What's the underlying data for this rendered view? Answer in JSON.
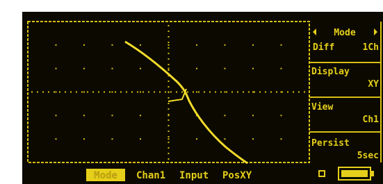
{
  "menu": [
    {
      "title": "Mode",
      "left": "Diff",
      "right": "1Ch"
    },
    {
      "title": "Display",
      "right": "XY"
    },
    {
      "title": "View",
      "right": "Ch1"
    },
    {
      "title": "Persist",
      "right": "5sec"
    }
  ],
  "softkeys": [
    "Mode",
    "Chan1",
    "Input",
    "PosXY"
  ]
}
